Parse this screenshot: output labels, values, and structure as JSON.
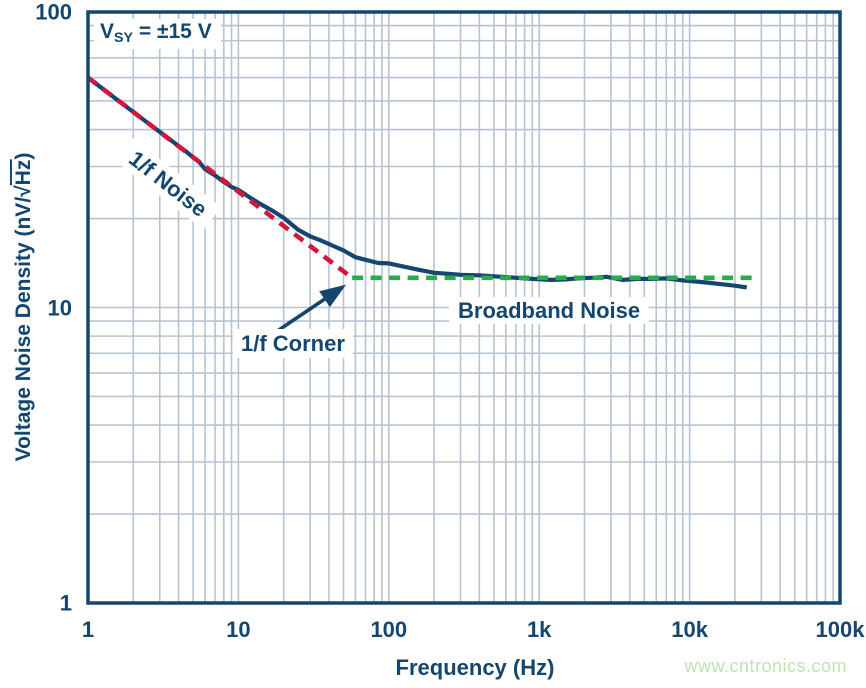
{
  "watermark": "www.cntronics.com",
  "colors": {
    "navy": "#14466F",
    "grid": "#b7c3d3",
    "red_asymptote": "#D2173F",
    "green_asymptote": "#28AB49",
    "arrow": "#14466F",
    "watermark_green": "#bee4b6",
    "background": "#ffffff"
  },
  "chart_data": {
    "type": "line",
    "title": "",
    "xlabel": "Frequency (Hz)",
    "ylabel": "Voltage Noise Density (nV/√Hz)",
    "ylabel_parts": {
      "pre": "Voltage Noise Density (nV/",
      "radical": "√",
      "overline": "Hz",
      "post": ")"
    },
    "log_x": true,
    "log_y": true,
    "xlim": [
      1,
      100000
    ],
    "ylim": [
      1,
      100
    ],
    "grid": "on",
    "legend": "none",
    "x_ticks": [
      {
        "f": 1,
        "label": "1"
      },
      {
        "f": 10,
        "label": "10"
      },
      {
        "f": 100,
        "label": "100"
      },
      {
        "f": 1000,
        "label": "1k"
      },
      {
        "f": 10000,
        "label": "10k"
      },
      {
        "f": 100000,
        "label": "100k"
      }
    ],
    "y_ticks": [
      {
        "v": 1,
        "label": "1"
      },
      {
        "v": 10,
        "label": "10"
      },
      {
        "v": 100,
        "label": "100"
      }
    ],
    "series": [
      {
        "name": "measured-noise",
        "style": "solid",
        "color": "#14466F",
        "points": [
          [
            1,
            60
          ],
          [
            1.3,
            54.2
          ],
          [
            1.6,
            50
          ],
          [
            2,
            45.9
          ],
          [
            2.5,
            42.1
          ],
          [
            3,
            39.3
          ],
          [
            3.5,
            37.1
          ],
          [
            4,
            35.2
          ],
          [
            4.5,
            33.7
          ],
          [
            5,
            32.2
          ],
          [
            5.5,
            31
          ],
          [
            6,
            29.4
          ],
          [
            6.5,
            28.6
          ],
          [
            7,
            28
          ],
          [
            8,
            26.6
          ],
          [
            9,
            25.6
          ],
          [
            10,
            25
          ],
          [
            12,
            23.5
          ],
          [
            14,
            22.4
          ],
          [
            17,
            21.2
          ],
          [
            20,
            20.1
          ],
          [
            25,
            18.3
          ],
          [
            30,
            17.4
          ],
          [
            35,
            16.9
          ],
          [
            40,
            16.4
          ],
          [
            50,
            15.6
          ],
          [
            60,
            14.8
          ],
          [
            70,
            14.5
          ],
          [
            85,
            14.15
          ],
          [
            100,
            14.1
          ],
          [
            130,
            13.7
          ],
          [
            160,
            13.4
          ],
          [
            200,
            13.1
          ],
          [
            250,
            13.0
          ],
          [
            300,
            12.9
          ],
          [
            400,
            12.85
          ],
          [
            500,
            12.75
          ],
          [
            700,
            12.6
          ],
          [
            900,
            12.5
          ],
          [
            1200,
            12.4
          ],
          [
            1500,
            12.45
          ],
          [
            1800,
            12.55
          ],
          [
            2200,
            12.6
          ],
          [
            2800,
            12.7
          ],
          [
            3200,
            12.55
          ],
          [
            3600,
            12.4
          ],
          [
            4500,
            12.5
          ],
          [
            5500,
            12.5
          ],
          [
            7000,
            12.55
          ],
          [
            9000,
            12.35
          ],
          [
            12000,
            12.2
          ],
          [
            16000,
            12.0
          ],
          [
            20000,
            11.85
          ],
          [
            24000,
            11.7
          ]
        ]
      },
      {
        "name": "one-over-f-asymptote",
        "style": "dashed",
        "color": "#D2173F",
        "points": [
          [
            1,
            60
          ],
          [
            57,
            12.6
          ]
        ]
      },
      {
        "name": "broadband-asymptote",
        "style": "dashed",
        "color": "#28AB49",
        "points": [
          [
            57,
            12.6
          ],
          [
            29000,
            12.6
          ]
        ]
      }
    ],
    "annotations": {
      "vsy": {
        "prefix": "V",
        "sub": "SY",
        "rest": " = ±15 V"
      },
      "one_f_noise": "1/f Noise",
      "one_f_corner": "1/f Corner",
      "broadband": "Broadband Noise",
      "corner_frequency_hz": 57,
      "broadband_level_nv": 12.6,
      "arrow": {
        "tail": [
          18,
          8.3
        ],
        "tip": [
          52,
          11.95
        ]
      }
    }
  }
}
